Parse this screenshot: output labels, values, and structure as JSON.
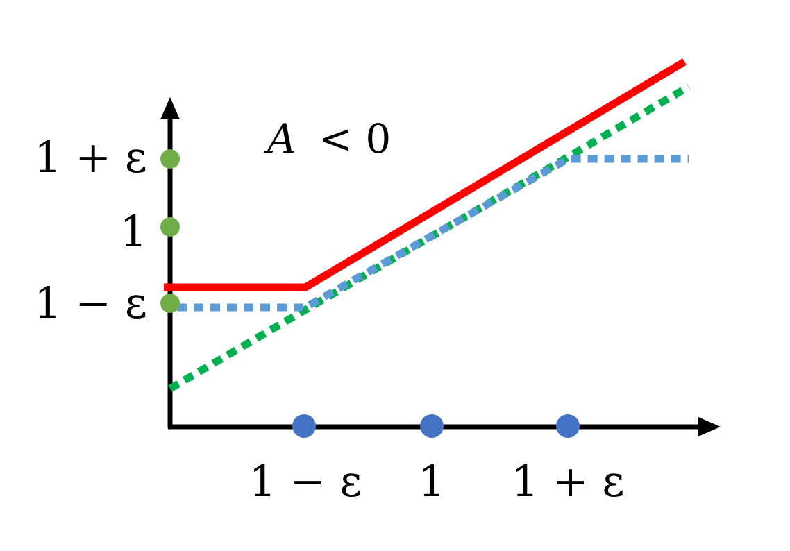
{
  "title": {
    "variable": "A",
    "relation": "< 0"
  },
  "y_ticks": [
    "1 + ε",
    "1",
    "1 − ε"
  ],
  "x_ticks": [
    "1 − ε",
    "1",
    "1 + ε"
  ],
  "colors": {
    "axis": "#000000",
    "red_line": "#ff0000",
    "blue_dotted": "#5b9bd5",
    "green_dotted": "#00b050",
    "y_tick_dots": "#70ad47",
    "x_tick_dots": "#4472c4"
  },
  "lines": [
    {
      "style": "solid",
      "color": "red",
      "shape": "flat at a level just above 1 − ε until x = 1 − ε, then rising linearly"
    },
    {
      "style": "dotted",
      "color": "blue",
      "shape": "flat at 1 − ε until x = 1 − ε, rising linearly to 1 + ε at x = 1 + ε, then flat"
    },
    {
      "style": "dotted",
      "color": "green",
      "shape": "linear throughout"
    }
  ]
}
